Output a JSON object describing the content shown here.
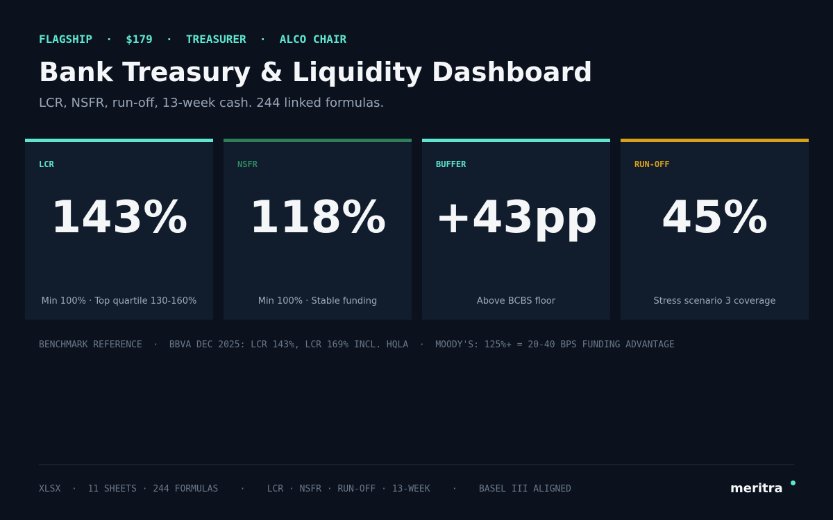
{
  "header": {
    "eyebrow": "FLAGSHIP  ·  $179  ·  TREASURER  ·  ALCO CHAIR",
    "title": "Bank Treasury & Liquidity Dashboard",
    "subtitle": "LCR, NSFR, run-off, 13-week cash. 244 linked formulas."
  },
  "cards": [
    {
      "label": "LCR",
      "value": "143%",
      "note": "Min 100% · Top quartile 130-160%"
    },
    {
      "label": "NSFR",
      "value": "118%",
      "note": "Min 100% · Stable funding"
    },
    {
      "label": "BUFFER",
      "value": "+43pp",
      "note": "Above BCBS floor"
    },
    {
      "label": "RUN-OFF",
      "value": "45%",
      "note": "Stress scenario 3 coverage"
    }
  ],
  "benchmark": "BENCHMARK REFERENCE  ·  BBVA DEC 2025: LCR 143%, LCR 169% INCL. HQLA  ·  MOODY'S: 125%+ = 20-40 BPS FUNDING ADVANTAGE",
  "footer": {
    "text": "XLSX  ·  11 SHEETS · 244 FORMULAS    ·    LCR · NSFR · RUN-OFF · 13-WEEK    ·    BASEL III ALIGNED",
    "brand": "meritra"
  }
}
